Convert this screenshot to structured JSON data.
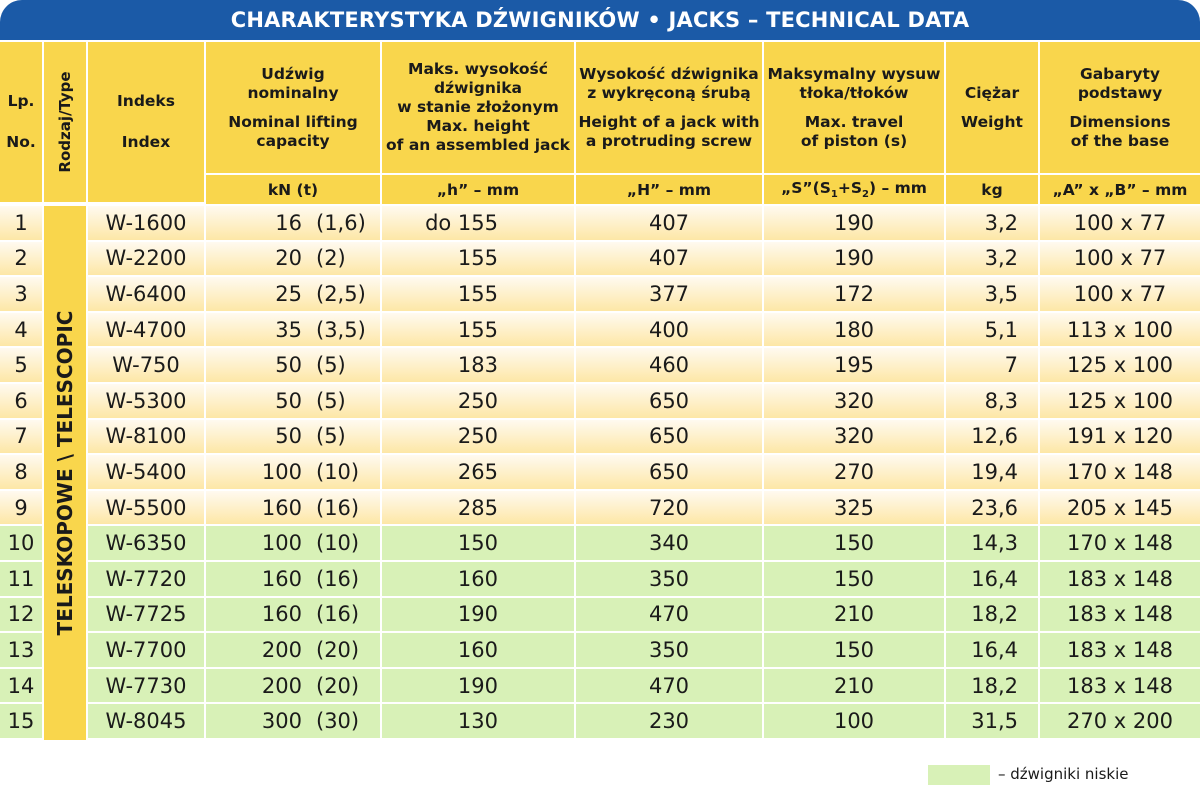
{
  "title": "CHARAKTERYSTYKA DŹWIGNIKÓW • JACKS – TECHNICAL DATA",
  "headers": {
    "lp": [
      "Lp.",
      "No."
    ],
    "type": "Rodzaj/Type",
    "index": [
      "Indeks",
      "Index"
    ],
    "capacity": [
      "Udźwig",
      "nominalny",
      "",
      "Nominal lifting",
      "capacity"
    ],
    "height_min": [
      "Maks. wysokość",
      "dźwignika",
      "w stanie złożonym",
      "Max. height",
      "of an assembled jack"
    ],
    "height_screw": [
      "Wysokość dźwignika",
      "z wykręconą śrubą",
      "",
      "Height of a jack with",
      "a protruding screw"
    ],
    "travel": [
      "Maksymalny wysuw",
      "tłoka/tłoków",
      "",
      "Max. travel",
      "of piston (s)"
    ],
    "weight": [
      "Ciężar",
      "",
      "Weight"
    ],
    "base": [
      "Gabaryty",
      "podstawy",
      "",
      "Dimensions",
      "of the base"
    ]
  },
  "units": {
    "capacity": "kN (t)",
    "height_min": "„h” – mm",
    "height_screw": "„H” – mm",
    "travel": "„S”(S1+S2) – mm",
    "weight": "kg",
    "base": "„A” x „B” – mm"
  },
  "group_label": "TELESKOPOWE \\ TELESCOPIC",
  "row_colors": {
    "standard_top": "#fffaf0",
    "standard_bottom": "#fde7a6",
    "low": "#d8f1b7"
  },
  "rows": [
    [
      "1",
      "W-1600",
      "16",
      "(1,6)",
      "do 155",
      "407",
      "190",
      "3,2",
      "100 x 77"
    ],
    [
      "2",
      "W-2200",
      "20",
      "(2)",
      "155",
      "407",
      "190",
      "3,2",
      "100 x 77"
    ],
    [
      "3",
      "W-6400",
      "25",
      "(2,5)",
      "155",
      "377",
      "172",
      "3,5",
      "100 x 77"
    ],
    [
      "4",
      "W-4700",
      "35",
      "(3,5)",
      "155",
      "400",
      "180",
      "5,1",
      "113 x 100"
    ],
    [
      "5",
      "W-750",
      "50",
      "(5)",
      "183",
      "460",
      "195",
      "7",
      "125 x 100"
    ],
    [
      "6",
      "W-5300",
      "50",
      "(5)",
      "250",
      "650",
      "320",
      "8,3",
      "125 x 100"
    ],
    [
      "7",
      "W-8100",
      "50",
      "(5)",
      "250",
      "650",
      "320",
      "12,6",
      "191 x 120"
    ],
    [
      "8",
      "W-5400",
      "100",
      "(10)",
      "265",
      "650",
      "270",
      "19,4",
      "170 x 148"
    ],
    [
      "9",
      "W-5500",
      "160",
      "(16)",
      "285",
      "720",
      "325",
      "23,6",
      "205 x 145"
    ],
    [
      "10",
      "W-6350",
      "100",
      "(10)",
      "150",
      "340",
      "150",
      "14,3",
      "170 x 148"
    ],
    [
      "11",
      "W-7720",
      "160",
      "(16)",
      "160",
      "350",
      "150",
      "16,4",
      "183 x 148"
    ],
    [
      "12",
      "W-7725",
      "160",
      "(16)",
      "190",
      "470",
      "210",
      "18,2",
      "183 x 148"
    ],
    [
      "13",
      "W-7700",
      "200",
      "(20)",
      "160",
      "350",
      "150",
      "16,4",
      "183 x 148"
    ],
    [
      "14",
      "W-7730",
      "200",
      "(20)",
      "190",
      "470",
      "210",
      "18,2",
      "183 x 148"
    ],
    [
      "15",
      "W-8045",
      "300",
      "(30)",
      "130",
      "230",
      "100",
      "31,5",
      "270 x 200"
    ]
  ],
  "low_rows_from": 10,
  "legend": {
    "text": "– dźwigniki niskie"
  }
}
